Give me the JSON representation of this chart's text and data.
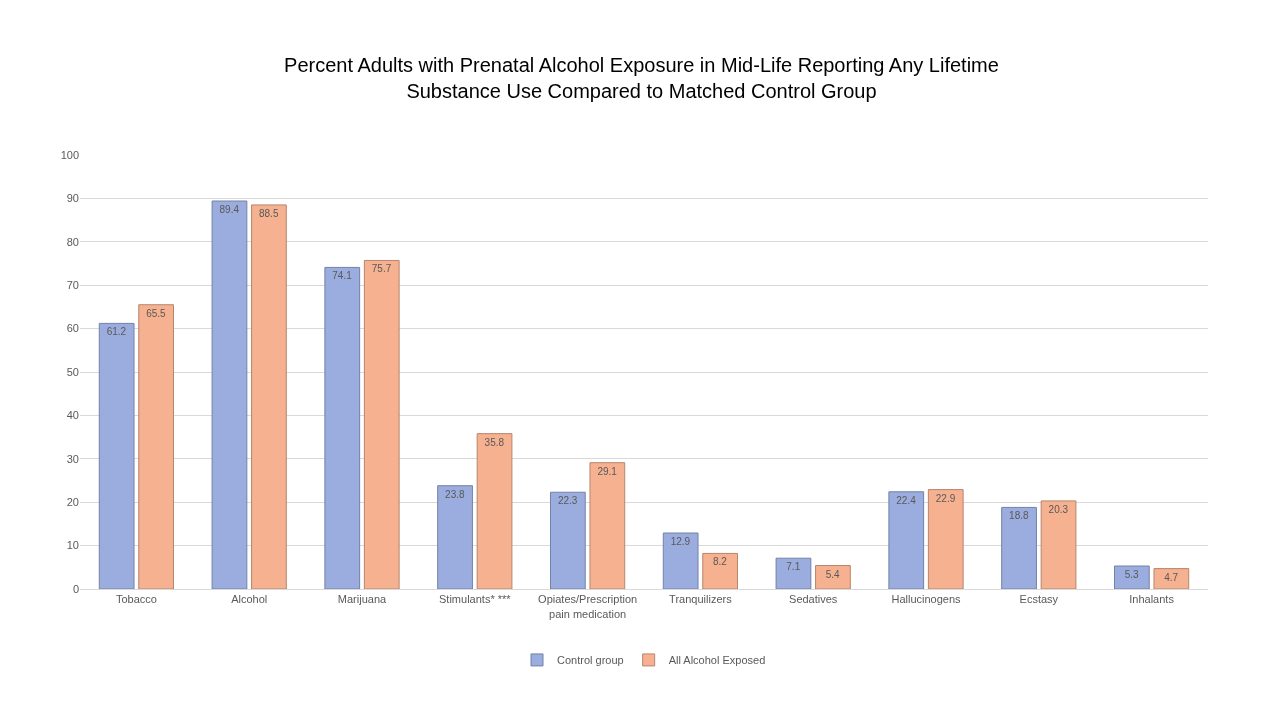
{
  "chart_data": {
    "type": "bar",
    "title": "Percent Adults with Prenatal Alcohol Exposure in Mid-Life Reporting Any Lifetime Substance Use Compared to Matched Control Group",
    "categories": [
      "Tobacco",
      "Alcohol",
      "Marijuana",
      "Stimulants* ***",
      "Opiates/Prescription pain medication",
      "Tranquilizers",
      "Sedatives",
      "Hallucinogens",
      "Ecstasy",
      "Inhalants"
    ],
    "series": [
      {
        "name": "Control group",
        "color": "#9badde",
        "values": [
          61.2,
          89.4,
          74.1,
          23.8,
          22.3,
          12.9,
          7.1,
          22.4,
          18.8,
          5.3
        ]
      },
      {
        "name": "All Alcohol Exposed",
        "color": "#f6b190",
        "values": [
          65.5,
          88.5,
          75.7,
          35.8,
          29.1,
          8.2,
          5.4,
          22.9,
          20.3,
          4.7
        ]
      }
    ],
    "ylim": [
      0,
      100
    ],
    "yticks": [
      0,
      10,
      20,
      30,
      40,
      50,
      60,
      70,
      80,
      90,
      100
    ],
    "grid": "y",
    "legend": "bottom",
    "data_labels": true
  }
}
